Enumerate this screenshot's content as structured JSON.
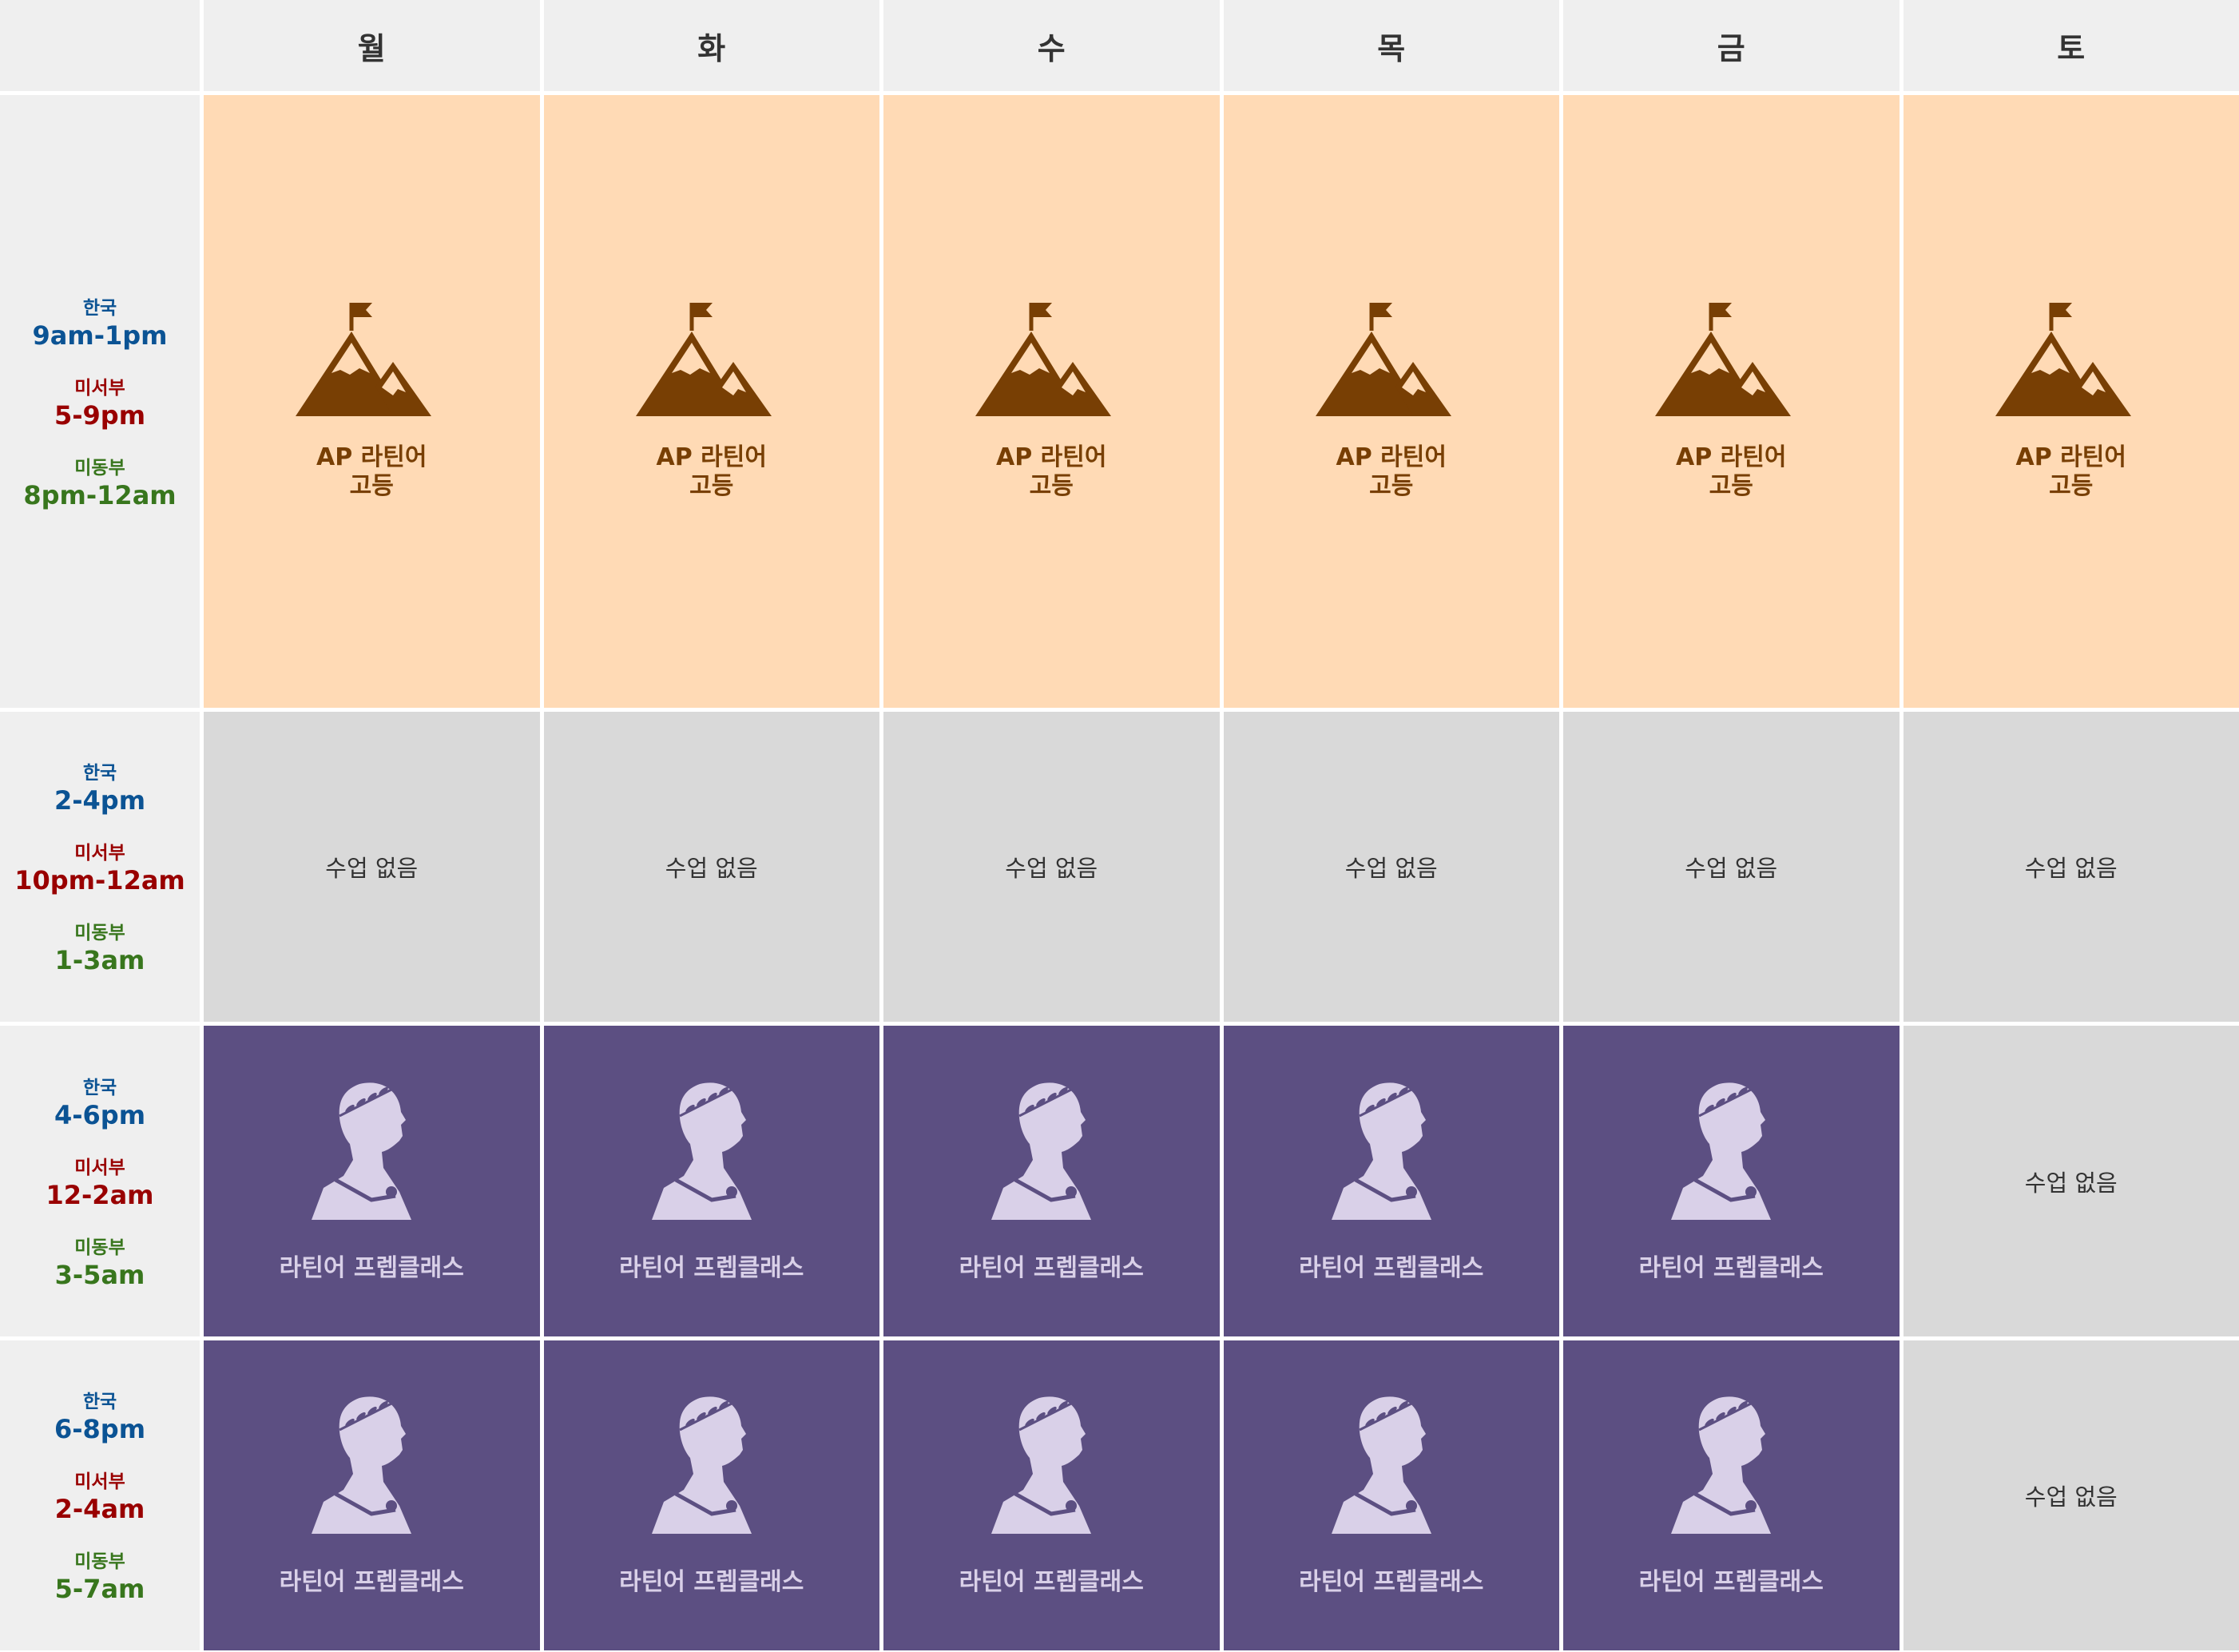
{
  "days": [
    "월",
    "화",
    "수",
    "목",
    "금",
    "토"
  ],
  "colors": {
    "peach": "#ffdab5",
    "brown": "#783f04",
    "gray": "#d9d9d9",
    "purple": "#5c4f82",
    "lavender": "#d9d0e8",
    "korea": "#0b5394",
    "west": "#990000",
    "east": "#38761d"
  },
  "slots": [
    {
      "korea_label": "한국",
      "korea": "9am-1pm",
      "west_label": "미서부",
      "west": "5-9pm",
      "east_label": "미동부",
      "east": "8pm-12am"
    },
    {
      "korea_label": "한국",
      "korea": "2-4pm",
      "west_label": "미서부",
      "west": "10pm-12am",
      "east_label": "미동부",
      "east": "1-3am"
    },
    {
      "korea_label": "한국",
      "korea": "4-6pm",
      "west_label": "미서부",
      "west": "12-2am",
      "east_label": "미동부",
      "east": "3-5am"
    },
    {
      "korea_label": "한국",
      "korea": "6-8pm",
      "west_label": "미서부",
      "west": "2-4am",
      "east_label": "미동부",
      "east": "5-7am"
    }
  ],
  "schedule": [
    [
      {
        "type": "ap",
        "line1": "AP 라틴어",
        "line2": "고등",
        "icon": "mountain-flag-icon"
      },
      {
        "type": "ap",
        "line1": "AP 라틴어",
        "line2": "고등",
        "icon": "mountain-flag-icon"
      },
      {
        "type": "ap",
        "line1": "AP 라틴어",
        "line2": "고등",
        "icon": "mountain-flag-icon"
      },
      {
        "type": "ap",
        "line1": "AP 라틴어",
        "line2": "고등",
        "icon": "mountain-flag-icon"
      },
      {
        "type": "ap",
        "line1": "AP 라틴어",
        "line2": "고등",
        "icon": "mountain-flag-icon"
      },
      {
        "type": "ap",
        "line1": "AP 라틴어",
        "line2": "고등",
        "icon": "mountain-flag-icon"
      }
    ],
    [
      {
        "type": "none",
        "line1": "수업 없음"
      },
      {
        "type": "none",
        "line1": "수업 없음"
      },
      {
        "type": "none",
        "line1": "수업 없음"
      },
      {
        "type": "none",
        "line1": "수업 없음"
      },
      {
        "type": "none",
        "line1": "수업 없음"
      },
      {
        "type": "none",
        "line1": "수업 없음"
      }
    ],
    [
      {
        "type": "prep",
        "line1": "라틴어 프렙클래스",
        "icon": "roman-bust-icon"
      },
      {
        "type": "prep",
        "line1": "라틴어 프렙클래스",
        "icon": "roman-bust-icon"
      },
      {
        "type": "prep",
        "line1": "라틴어 프렙클래스",
        "icon": "roman-bust-icon"
      },
      {
        "type": "prep",
        "line1": "라틴어 프렙클래스",
        "icon": "roman-bust-icon"
      },
      {
        "type": "prep",
        "line1": "라틴어 프렙클래스",
        "icon": "roman-bust-icon"
      },
      {
        "type": "none",
        "line1": "수업 없음"
      }
    ],
    [
      {
        "type": "prep",
        "line1": "라틴어 프렙클래스",
        "icon": "roman-bust-icon"
      },
      {
        "type": "prep",
        "line1": "라틴어 프렙클래스",
        "icon": "roman-bust-icon"
      },
      {
        "type": "prep",
        "line1": "라틴어 프렙클래스",
        "icon": "roman-bust-icon"
      },
      {
        "type": "prep",
        "line1": "라틴어 프렙클래스",
        "icon": "roman-bust-icon"
      },
      {
        "type": "prep",
        "line1": "라틴어 프렙클래스",
        "icon": "roman-bust-icon"
      },
      {
        "type": "none",
        "line1": "수업 없음"
      }
    ]
  ]
}
